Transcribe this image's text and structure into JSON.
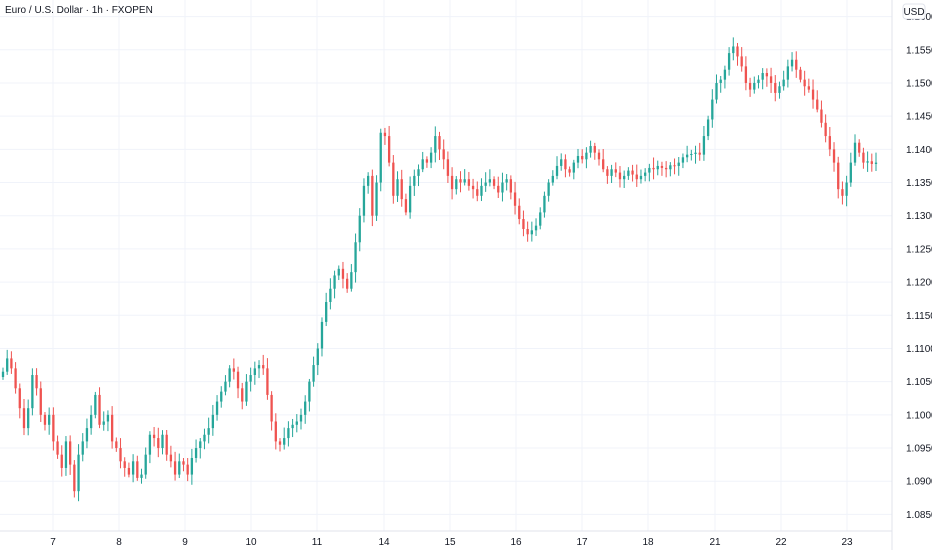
{
  "chart_data": {
    "type": "candlestick",
    "title": "Euro / U.S. Dollar · 1h · FXOPEN",
    "currency": "USD",
    "colors": {
      "up": "#26a69a",
      "down": "#ef5350",
      "grid": "#f0f3fa",
      "text": "#131722"
    },
    "ylim": [
      1.0825,
      1.1625
    ],
    "y_ticks": [
      "1.16000",
      "1.15500",
      "1.15000",
      "1.14500",
      "1.14000",
      "1.13500",
      "1.13000",
      "1.12500",
      "1.12000",
      "1.11500",
      "1.11000",
      "1.10500",
      "1.10000",
      "1.09500",
      "1.09000",
      "1.08500"
    ],
    "x_ticks": [
      "7",
      "8",
      "9",
      "10",
      "11",
      "14",
      "15",
      "16",
      "17",
      "18",
      "21",
      "22",
      "23"
    ],
    "closes": [
      1.1065,
      1.1085,
      1.107,
      1.104,
      1.101,
      1.098,
      1.101,
      1.106,
      1.104,
      1.1,
      1.0985,
      1.1,
      1.096,
      1.094,
      1.092,
      1.096,
      1.0925,
      1.0885,
      1.094,
      1.096,
      1.098,
      1.1,
      1.103,
      1.0985,
      1.099,
      1.1,
      1.096,
      1.095,
      1.093,
      1.092,
      1.091,
      1.093,
      1.0905,
      1.091,
      1.094,
      1.097,
      1.0965,
      1.095,
      1.097,
      1.094,
      1.093,
      1.091,
      1.093,
      1.0925,
      1.091,
      1.0935,
      1.095,
      1.096,
      1.097,
      1.098,
      1.1,
      1.102,
      1.1035,
      1.105,
      1.107,
      1.1065,
      1.104,
      1.102,
      1.105,
      1.106,
      1.107,
      1.1075,
      1.107,
      1.103,
      1.099,
      1.096,
      1.0955,
      1.0965,
      1.098,
      1.0985,
      1.099,
      1.1,
      1.102,
      1.105,
      1.1075,
      1.11,
      1.114,
      1.117,
      1.119,
      1.121,
      1.122,
      1.1205,
      1.119,
      1.1215,
      1.126,
      1.13,
      1.1345,
      1.136,
      1.13,
      1.135,
      1.1425,
      1.142,
      1.138,
      1.133,
      1.1355,
      1.1325,
      1.1305,
      1.1345,
      1.136,
      1.137,
      1.1385,
      1.138,
      1.1395,
      1.142,
      1.14,
      1.1385,
      1.136,
      1.134,
      1.1355,
      1.135,
      1.1355,
      1.1345,
      1.134,
      1.133,
      1.1345,
      1.135,
      1.1355,
      1.1345,
      1.1335,
      1.135,
      1.1355,
      1.1335,
      1.1315,
      1.1295,
      1.128,
      1.1272,
      1.1278,
      1.1285,
      1.1305,
      1.133,
      1.135,
      1.136,
      1.1375,
      1.1385,
      1.137,
      1.1365,
      1.138,
      1.139,
      1.1385,
      1.1395,
      1.1405,
      1.1395,
      1.1385,
      1.137,
      1.136,
      1.137,
      1.1365,
      1.1355,
      1.136,
      1.1368,
      1.1362,
      1.1355,
      1.136,
      1.1365,
      1.1372,
      1.137,
      1.1375,
      1.1372,
      1.137,
      1.1376,
      1.1375,
      1.138,
      1.1388,
      1.1392,
      1.1393,
      1.1395,
      1.1392,
      1.142,
      1.1445,
      1.1475,
      1.15,
      1.1505,
      1.152,
      1.1545,
      1.1555,
      1.154,
      1.1525,
      1.15,
      1.149,
      1.15,
      1.1505,
      1.1515,
      1.151,
      1.15,
      1.1485,
      1.1495,
      1.1505,
      1.1525,
      1.1535,
      1.152,
      1.1505,
      1.1495,
      1.149,
      1.1475,
      1.146,
      1.144,
      1.142,
      1.14,
      1.138,
      1.134,
      1.133,
      1.135,
      1.138,
      1.141,
      1.1395,
      1.138,
      1.1382,
      1.1378,
      1.138
    ]
  }
}
